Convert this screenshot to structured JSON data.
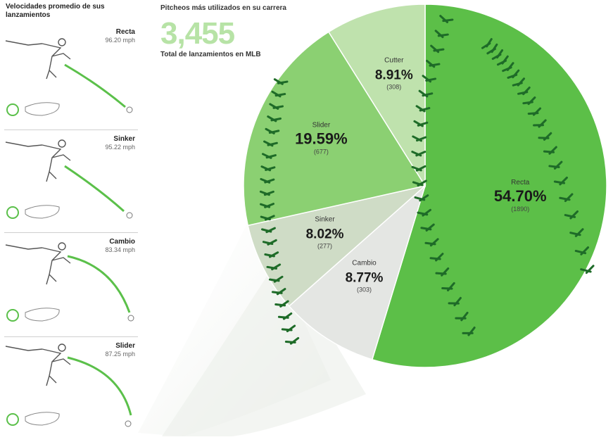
{
  "left_panel": {
    "title": "Velocidades promedio de sus lanzamientos",
    "pitches": [
      {
        "name": "Recta",
        "speed": "96.20 mph"
      },
      {
        "name": "Sinker",
        "speed": "95.22 mph"
      },
      {
        "name": "Cambio",
        "speed": "83.34 mph"
      },
      {
        "name": "Slider",
        "speed": "87.25 mph"
      }
    ]
  },
  "header": {
    "title": "Pitcheos más utilizados en su carrera",
    "total_value": "3,455",
    "total_label": "Total de lanzamientos en MLB"
  },
  "colors": {
    "accent": "#5bc04a",
    "recta": "#5cbf48",
    "slider": "#8bd072",
    "cutter": "#bfe2ad",
    "sinker": "#cfdcc6",
    "cambio": "#e4e6e3",
    "stitch": "#1e6b28",
    "total": "#b7e3a6"
  },
  "chart_data": {
    "type": "pie",
    "title": "Pitcheos más utilizados en su carrera",
    "total": 3455,
    "slices": [
      {
        "label": "Recta",
        "percent": 54.7,
        "percent_text": "54.70%",
        "count": 1890,
        "count_text": "(1890)"
      },
      {
        "label": "Cambio",
        "percent": 8.77,
        "percent_text": "8.77%",
        "count": 303,
        "count_text": "(303)"
      },
      {
        "label": "Sinker",
        "percent": 8.02,
        "percent_text": "8.02%",
        "count": 277,
        "count_text": "(277)"
      },
      {
        "label": "Slider",
        "percent": 19.59,
        "percent_text": "19.59%",
        "count": 677,
        "count_text": "(677)"
      },
      {
        "label": "Cutter",
        "percent": 8.91,
        "percent_text": "8.91%",
        "count": 308,
        "count_text": "(308)"
      }
    ]
  }
}
